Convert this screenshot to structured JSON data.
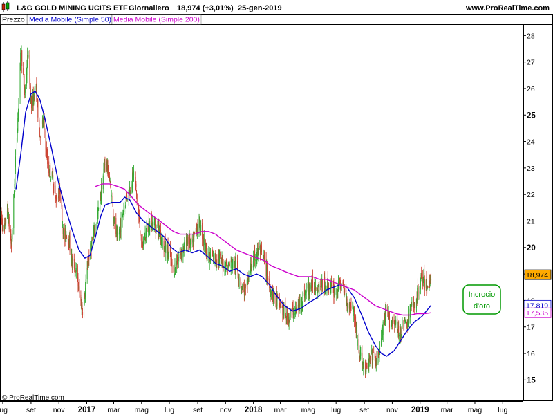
{
  "header": {
    "instrument": "L&G GOLD MINING UCITS ETF",
    "period": "Giornaliero",
    "price": "18,974 (+3,01%)",
    "date": "25-gen-2019",
    "site": "www.ProRealTime.com"
  },
  "legend": [
    {
      "label": "Prezzo",
      "color": "#000000"
    },
    {
      "label": "Media Mobile (Simple 50)",
      "color": "#0000cc"
    },
    {
      "label": "Media Mobile (Simple 200)",
      "color": "#cc00cc"
    }
  ],
  "footer": {
    "copyright": "© ProRealTime.com"
  },
  "annotation": {
    "line1": "Incrocio",
    "line2": "d'oro",
    "color": "#009900"
  },
  "price_labels": [
    {
      "value": "18,974",
      "y": 18.974,
      "bg": "#ffaa00",
      "fg": "#000000"
    },
    {
      "value": "17,819",
      "y": 17.819,
      "bg": "#ffffff",
      "fg": "#0000cc"
    },
    {
      "value": "17,535",
      "y": 17.535,
      "bg": "#ffffff",
      "fg": "#cc00cc"
    }
  ],
  "chart_data": {
    "type": "candlestick",
    "ylim": [
      14.2,
      28.4
    ],
    "y_ticks": [
      15,
      16,
      17,
      18,
      19,
      20,
      21,
      22,
      23,
      24,
      25,
      26,
      27,
      28
    ],
    "bold_ticks": [
      15,
      20,
      25
    ],
    "xlim": [
      "2016-06-25",
      "2019-08-15"
    ],
    "x_ticks": [
      {
        "date": "2016-07-01",
        "label": "lug",
        "bold": false
      },
      {
        "date": "2016-09-01",
        "label": "set",
        "bold": false
      },
      {
        "date": "2016-11-01",
        "label": "nov",
        "bold": false
      },
      {
        "date": "2017-01-01",
        "label": "2017",
        "bold": true
      },
      {
        "date": "2017-03-01",
        "label": "mar",
        "bold": false
      },
      {
        "date": "2017-05-01",
        "label": "mag",
        "bold": false
      },
      {
        "date": "2017-07-01",
        "label": "lug",
        "bold": false
      },
      {
        "date": "2017-09-01",
        "label": "set",
        "bold": false
      },
      {
        "date": "2017-11-01",
        "label": "nov",
        "bold": false
      },
      {
        "date": "2018-01-01",
        "label": "2018",
        "bold": true
      },
      {
        "date": "2018-03-01",
        "label": "mar",
        "bold": false
      },
      {
        "date": "2018-05-01",
        "label": "mag",
        "bold": false
      },
      {
        "date": "2018-07-01",
        "label": "lug",
        "bold": false
      },
      {
        "date": "2018-09-01",
        "label": "set",
        "bold": false
      },
      {
        "date": "2018-11-01",
        "label": "nov",
        "bold": false
      },
      {
        "date": "2019-01-01",
        "label": "2019",
        "bold": true
      },
      {
        "date": "2019-03-01",
        "label": "mar",
        "bold": false
      },
      {
        "date": "2019-05-01",
        "label": "mag",
        "bold": false
      },
      {
        "date": "2019-07-01",
        "label": "lug",
        "bold": false
      }
    ],
    "price_path": [
      [
        "2016-06-25",
        21.3
      ],
      [
        "2016-07-05",
        20.6
      ],
      [
        "2016-07-10",
        21.6
      ],
      [
        "2016-07-20",
        20.0
      ],
      [
        "2016-07-28",
        22.9
      ],
      [
        "2016-08-03",
        24.9
      ],
      [
        "2016-08-10",
        27.5
      ],
      [
        "2016-08-18",
        25.8
      ],
      [
        "2016-08-25",
        27.3
      ],
      [
        "2016-09-02",
        25.3
      ],
      [
        "2016-09-12",
        26.0
      ],
      [
        "2016-09-20",
        24.2
      ],
      [
        "2016-09-28",
        24.8
      ],
      [
        "2016-10-08",
        23.0
      ],
      [
        "2016-10-18",
        22.6
      ],
      [
        "2016-10-25",
        21.8
      ],
      [
        "2016-11-03",
        22.2
      ],
      [
        "2016-11-12",
        20.3
      ],
      [
        "2016-11-20",
        20.6
      ],
      [
        "2016-11-30",
        19.4
      ],
      [
        "2016-12-08",
        19.2
      ],
      [
        "2016-12-18",
        18.0
      ],
      [
        "2016-12-24",
        17.6
      ],
      [
        "2017-01-05",
        19.6
      ],
      [
        "2017-01-15",
        20.4
      ],
      [
        "2017-01-25",
        21.2
      ],
      [
        "2017-02-03",
        22.3
      ],
      [
        "2017-02-10",
        23.3
      ],
      [
        "2017-02-18",
        22.8
      ],
      [
        "2017-02-28",
        21.3
      ],
      [
        "2017-03-08",
        20.3
      ],
      [
        "2017-03-15",
        20.7
      ],
      [
        "2017-03-25",
        21.7
      ],
      [
        "2017-04-05",
        22.2
      ],
      [
        "2017-04-15",
        22.9
      ],
      [
        "2017-04-22",
        21.6
      ],
      [
        "2017-05-02",
        20.0
      ],
      [
        "2017-05-10",
        20.5
      ],
      [
        "2017-05-20",
        21.0
      ],
      [
        "2017-06-01",
        20.8
      ],
      [
        "2017-06-10",
        20.6
      ],
      [
        "2017-06-20",
        20.0
      ],
      [
        "2017-06-30",
        19.8
      ],
      [
        "2017-07-10",
        19.1
      ],
      [
        "2017-07-20",
        19.6
      ],
      [
        "2017-08-01",
        20.0
      ],
      [
        "2017-08-10",
        20.3
      ],
      [
        "2017-08-20",
        20.0
      ],
      [
        "2017-08-28",
        20.7
      ],
      [
        "2017-09-05",
        20.9
      ],
      [
        "2017-09-15",
        20.2
      ],
      [
        "2017-09-25",
        19.6
      ],
      [
        "2017-10-05",
        19.6
      ],
      [
        "2017-10-15",
        19.6
      ],
      [
        "2017-10-25",
        19.4
      ],
      [
        "2017-11-05",
        19.3
      ],
      [
        "2017-11-15",
        19.4
      ],
      [
        "2017-11-25",
        19.3
      ],
      [
        "2017-12-05",
        18.6
      ],
      [
        "2017-12-15",
        18.3
      ],
      [
        "2017-12-25",
        19.2
      ],
      [
        "2018-01-05",
        19.7
      ],
      [
        "2018-01-15",
        19.9
      ],
      [
        "2018-01-25",
        19.5
      ],
      [
        "2018-02-05",
        18.5
      ],
      [
        "2018-02-15",
        18.2
      ],
      [
        "2018-02-25",
        17.9
      ],
      [
        "2018-03-07",
        17.6
      ],
      [
        "2018-03-17",
        17.3
      ],
      [
        "2018-03-27",
        17.6
      ],
      [
        "2018-04-08",
        17.7
      ],
      [
        "2018-04-18",
        18.1
      ],
      [
        "2018-04-28",
        18.4
      ],
      [
        "2018-05-10",
        18.6
      ],
      [
        "2018-05-20",
        18.6
      ],
      [
        "2018-06-01",
        18.5
      ],
      [
        "2018-06-10",
        18.6
      ],
      [
        "2018-06-20",
        18.5
      ],
      [
        "2018-06-30",
        18.3
      ],
      [
        "2018-07-10",
        18.6
      ],
      [
        "2018-07-20",
        18.3
      ],
      [
        "2018-07-28",
        17.8
      ],
      [
        "2018-08-05",
        17.9
      ],
      [
        "2018-08-12",
        17.2
      ],
      [
        "2018-08-20",
        16.0
      ],
      [
        "2018-08-28",
        15.7
      ],
      [
        "2018-09-05",
        15.3
      ],
      [
        "2018-09-12",
        15.7
      ],
      [
        "2018-09-20",
        16.0
      ],
      [
        "2018-09-28",
        15.6
      ],
      [
        "2018-10-05",
        16.2
      ],
      [
        "2018-10-12",
        17.0
      ],
      [
        "2018-10-20",
        17.6
      ],
      [
        "2018-10-28",
        17.1
      ],
      [
        "2018-11-05",
        17.3
      ],
      [
        "2018-11-15",
        16.7
      ],
      [
        "2018-11-25",
        17.1
      ],
      [
        "2018-12-05",
        17.2
      ],
      [
        "2018-12-12",
        17.7
      ],
      [
        "2018-12-20",
        17.8
      ],
      [
        "2018-12-28",
        18.4
      ],
      [
        "2019-01-05",
        18.9
      ],
      [
        "2019-01-12",
        18.6
      ],
      [
        "2019-01-18",
        18.4
      ],
      [
        "2019-01-25",
        18.97
      ]
    ],
    "series": [
      {
        "name": "Media Mobile (Simple 50)",
        "color": "#0000cc",
        "points": [
          [
            "2016-07-30",
            22.2
          ],
          [
            "2016-08-10",
            23.6
          ],
          [
            "2016-08-20",
            25.1
          ],
          [
            "2016-09-01",
            25.8
          ],
          [
            "2016-09-10",
            25.9
          ],
          [
            "2016-09-20",
            25.6
          ],
          [
            "2016-10-01",
            24.9
          ],
          [
            "2016-10-15",
            23.8
          ],
          [
            "2016-11-01",
            22.4
          ],
          [
            "2016-11-15",
            21.5
          ],
          [
            "2016-12-01",
            20.6
          ],
          [
            "2016-12-15",
            19.9
          ],
          [
            "2016-12-28",
            19.6
          ],
          [
            "2017-01-08",
            19.7
          ],
          [
            "2017-01-20",
            20.4
          ],
          [
            "2017-02-01",
            21.2
          ],
          [
            "2017-02-10",
            21.6
          ],
          [
            "2017-02-25",
            21.7
          ],
          [
            "2017-03-15",
            21.7
          ],
          [
            "2017-03-25",
            21.9
          ],
          [
            "2017-04-05",
            21.8
          ],
          [
            "2017-04-20",
            21.3
          ],
          [
            "2017-05-05",
            21.0
          ],
          [
            "2017-05-20",
            20.8
          ],
          [
            "2017-06-05",
            20.6
          ],
          [
            "2017-06-20",
            20.4
          ],
          [
            "2017-07-05",
            20.0
          ],
          [
            "2017-07-20",
            19.8
          ],
          [
            "2017-08-05",
            19.9
          ],
          [
            "2017-08-20",
            19.8
          ],
          [
            "2017-09-05",
            19.9
          ],
          [
            "2017-09-20",
            19.7
          ],
          [
            "2017-10-10",
            19.4
          ],
          [
            "2017-10-25",
            19.3
          ],
          [
            "2017-11-10",
            19.1
          ],
          [
            "2017-11-25",
            19.2
          ],
          [
            "2017-12-10",
            19.0
          ],
          [
            "2017-12-25",
            18.9
          ],
          [
            "2018-01-08",
            19.0
          ],
          [
            "2018-01-20",
            18.9
          ],
          [
            "2018-02-05",
            18.6
          ],
          [
            "2018-02-20",
            18.2
          ],
          [
            "2018-03-10",
            17.8
          ],
          [
            "2018-03-28",
            17.6
          ],
          [
            "2018-04-15",
            17.7
          ],
          [
            "2018-05-01",
            17.9
          ],
          [
            "2018-05-20",
            18.1
          ],
          [
            "2018-06-10",
            18.4
          ],
          [
            "2018-06-25",
            18.5
          ],
          [
            "2018-07-10",
            18.6
          ],
          [
            "2018-07-25",
            18.5
          ],
          [
            "2018-08-10",
            18.1
          ],
          [
            "2018-08-25",
            17.5
          ],
          [
            "2018-09-10",
            16.8
          ],
          [
            "2018-09-25",
            16.3
          ],
          [
            "2018-10-08",
            16.0
          ],
          [
            "2018-10-20",
            15.9
          ],
          [
            "2018-11-05",
            16.1
          ],
          [
            "2018-11-20",
            16.5
          ],
          [
            "2018-12-05",
            16.9
          ],
          [
            "2018-12-20",
            17.2
          ],
          [
            "2019-01-05",
            17.4
          ],
          [
            "2019-01-25",
            17.819
          ]
        ]
      },
      {
        "name": "Media Mobile (Simple 200)",
        "color": "#cc00cc",
        "points": [
          [
            "2017-01-20",
            22.3
          ],
          [
            "2017-02-05",
            22.4
          ],
          [
            "2017-02-20",
            22.4
          ],
          [
            "2017-03-10",
            22.3
          ],
          [
            "2017-03-25",
            22.2
          ],
          [
            "2017-04-10",
            21.9
          ],
          [
            "2017-04-25",
            21.6
          ],
          [
            "2017-05-10",
            21.4
          ],
          [
            "2017-05-25",
            21.2
          ],
          [
            "2017-06-10",
            21.0
          ],
          [
            "2017-06-25",
            20.8
          ],
          [
            "2017-07-10",
            20.6
          ],
          [
            "2017-07-25",
            20.5
          ],
          [
            "2017-08-10",
            20.5
          ],
          [
            "2017-08-25",
            20.5
          ],
          [
            "2017-09-10",
            20.6
          ],
          [
            "2017-09-25",
            20.6
          ],
          [
            "2017-10-10",
            20.5
          ],
          [
            "2017-10-25",
            20.3
          ],
          [
            "2017-11-10",
            20.1
          ],
          [
            "2017-11-25",
            19.9
          ],
          [
            "2017-12-10",
            19.8
          ],
          [
            "2017-12-25",
            19.7
          ],
          [
            "2018-01-10",
            19.6
          ],
          [
            "2018-01-25",
            19.5
          ],
          [
            "2018-02-10",
            19.3
          ],
          [
            "2018-02-25",
            19.2
          ],
          [
            "2018-03-10",
            19.1
          ],
          [
            "2018-03-25",
            19.0
          ],
          [
            "2018-04-10",
            18.9
          ],
          [
            "2018-04-25",
            18.9
          ],
          [
            "2018-05-10",
            18.9
          ],
          [
            "2018-05-25",
            18.8
          ],
          [
            "2018-06-10",
            18.8
          ],
          [
            "2018-06-25",
            18.7
          ],
          [
            "2018-07-10",
            18.6
          ],
          [
            "2018-07-25",
            18.5
          ],
          [
            "2018-08-10",
            18.4
          ],
          [
            "2018-08-25",
            18.2
          ],
          [
            "2018-09-10",
            18.0
          ],
          [
            "2018-09-25",
            17.8
          ],
          [
            "2018-10-10",
            17.7
          ],
          [
            "2018-10-25",
            17.6
          ],
          [
            "2018-11-10",
            17.5
          ],
          [
            "2018-11-25",
            17.45
          ],
          [
            "2018-12-10",
            17.45
          ],
          [
            "2018-12-25",
            17.5
          ],
          [
            "2019-01-10",
            17.5
          ],
          [
            "2019-01-25",
            17.535
          ]
        ]
      }
    ]
  }
}
